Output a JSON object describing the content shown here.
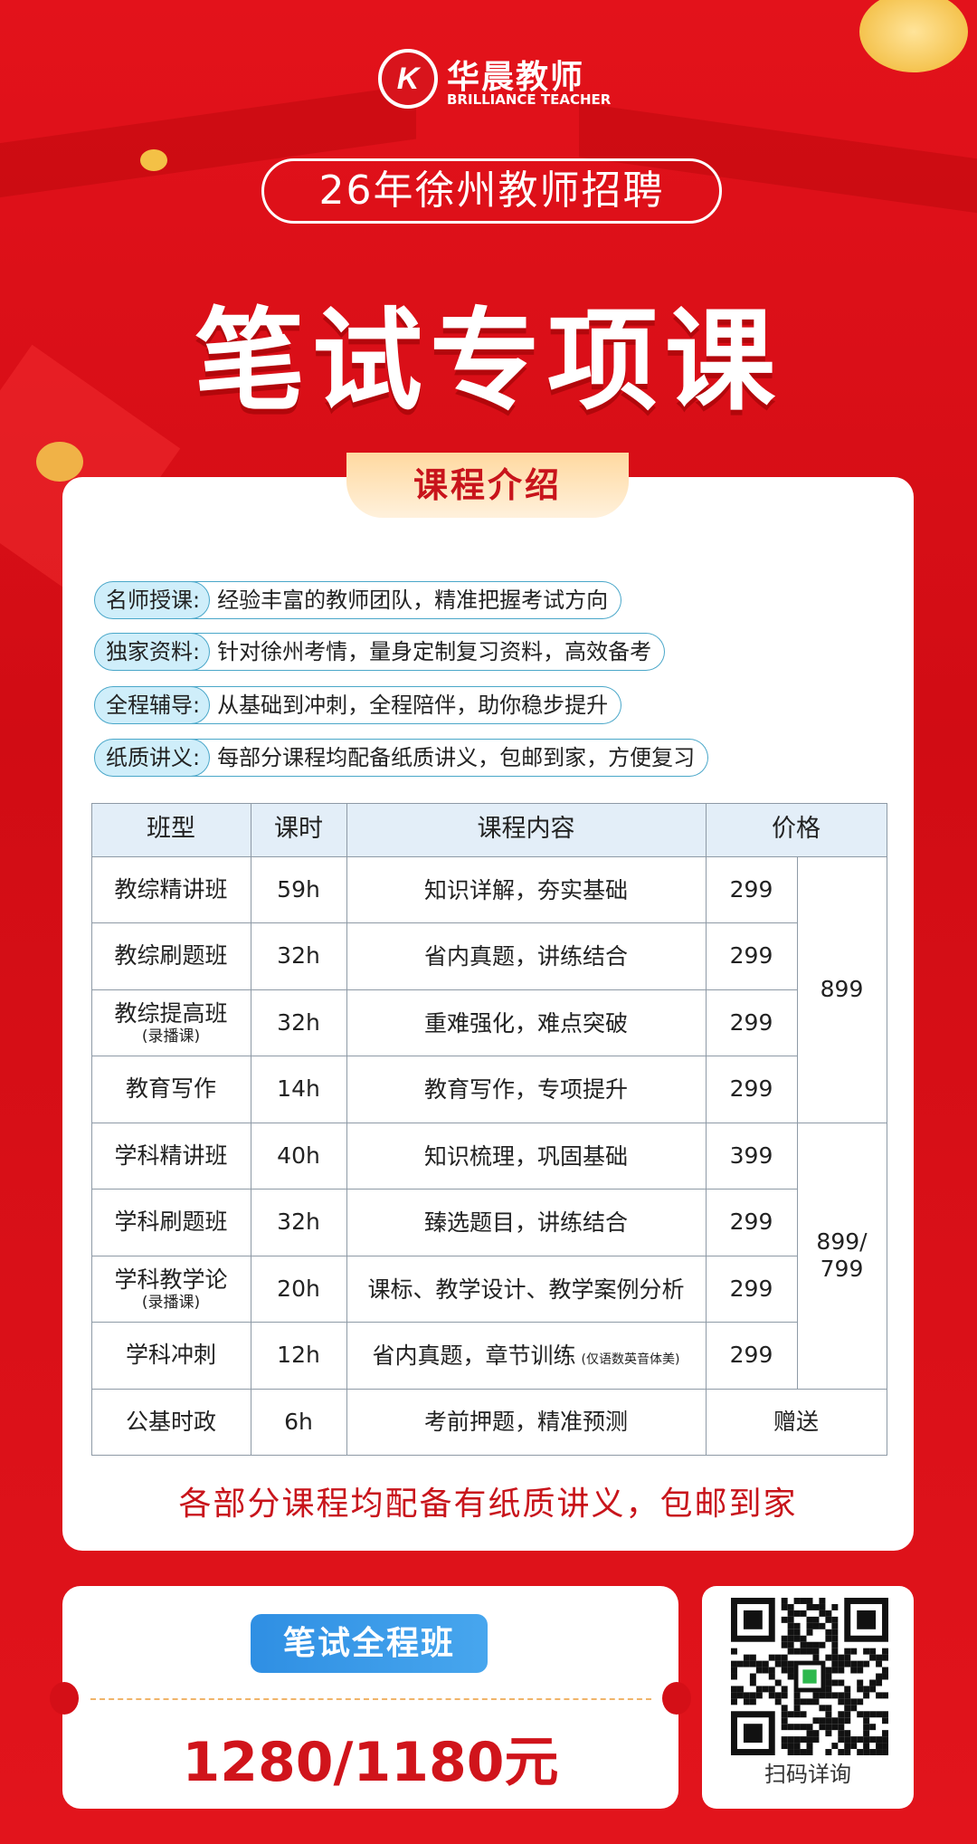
{
  "header": {
    "brand": "华晨教师",
    "brand_en": "BRILLIANCE TEACHER",
    "subtitle": "26年徐州教师招聘",
    "title": "笔试专项课"
  },
  "intro": {
    "heading": "课程介绍",
    "items": [
      {
        "label": "名师授课:",
        "text": "经验丰富的教师团队，精准把握考试方向"
      },
      {
        "label": "独家资料:",
        "text": "针对徐州考情，量身定制复习资料，高效备考"
      },
      {
        "label": "全程辅导:",
        "text": "从基础到冲刺，全程陪伴，助你稳步提升"
      },
      {
        "label": "纸质讲义:",
        "text": "每部分课程均配备纸质讲义，包邮到家，方便复习"
      }
    ]
  },
  "table": {
    "headers": [
      "班型",
      "课时",
      "课程内容",
      "价格"
    ],
    "groups": [
      {
        "bundle": "899",
        "rows": [
          {
            "name": "教综精讲班",
            "hours": "59h",
            "content": "知识详解，夯实基础",
            "price": "299"
          },
          {
            "name": "教综刷题班",
            "hours": "32h",
            "content": "省内真题，讲练结合",
            "price": "299"
          },
          {
            "name": "教综提高班",
            "note": "(录播课)",
            "hours": "32h",
            "content": "重难强化，难点突破",
            "price": "299"
          },
          {
            "name": "教育写作",
            "hours": "14h",
            "content": "教育写作，专项提升",
            "price": "299"
          }
        ]
      },
      {
        "bundle": "899/799",
        "rows": [
          {
            "name": "学科精讲班",
            "hours": "40h",
            "content": "知识梳理，巩固基础",
            "price": "399"
          },
          {
            "name": "学科刷题班",
            "hours": "32h",
            "content": "臻选题目，讲练结合",
            "price": "299"
          },
          {
            "name": "学科教学论",
            "note": "(录播课)",
            "hours": "20h",
            "content": "课标、教学设计、教学案例分析",
            "price": "299"
          },
          {
            "name": "学科冲刺",
            "hours": "12h",
            "content": "省内真题，章节训练",
            "content_note": "(仅语数英音体美)",
            "price": "299"
          }
        ]
      }
    ],
    "extra": {
      "name": "公基时政",
      "hours": "6h",
      "content": "考前押题，精准预测",
      "price": "赠送"
    }
  },
  "footer_note": "各部分课程均配备有纸质讲义，包邮到家",
  "offer": {
    "badge": "笔试全程班",
    "price": "1280/1180元"
  },
  "qr": {
    "caption": "扫码详询"
  }
}
